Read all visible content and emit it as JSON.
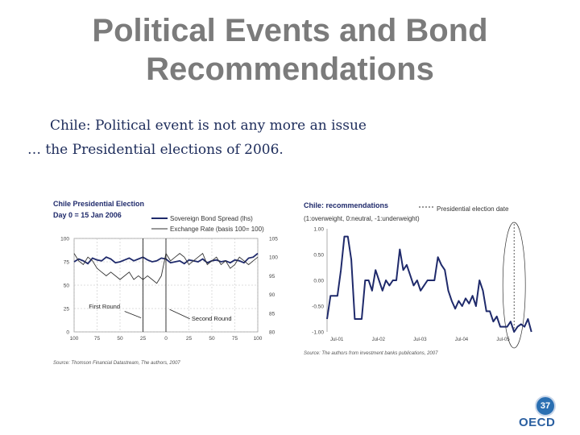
{
  "slide": {
    "title_line1": "Political Events and Bond",
    "title_line2": "Recommendations",
    "subtitle_line1": "Chile: Political event is not any more an issue",
    "subtitle_line2": "… the Presidential elections of 2006.",
    "page_number": "37",
    "logo_text": "OECD"
  },
  "colors": {
    "title": "#7b7b7b",
    "subtitle": "#1c2b5a",
    "navy_series": "#1f2a6b",
    "grey_series": "#333333",
    "badge": "#2a6fb2"
  },
  "chart_data": [
    {
      "type": "line",
      "title": "Chile Presidential Election",
      "subtitle": "Day 0 = 15 Jan 2006",
      "x": [
        -100,
        -95,
        -90,
        -85,
        -80,
        -75,
        -70,
        -65,
        -60,
        -55,
        -50,
        -45,
        -40,
        -35,
        -30,
        -25,
        -20,
        -15,
        -10,
        -5,
        0,
        5,
        10,
        15,
        20,
        25,
        30,
        35,
        40,
        45,
        50,
        55,
        60,
        65,
        70,
        75,
        80,
        85,
        90,
        95,
        100
      ],
      "x_ticks": [
        "100",
        "75",
        "50",
        "25",
        "0",
        "25",
        "50",
        "75",
        "100"
      ],
      "x_tick_values": [
        -100,
        -75,
        -50,
        -25,
        0,
        25,
        50,
        75,
        100
      ],
      "xlim": [
        -100,
        100
      ],
      "left_ylim": [
        0,
        100
      ],
      "left_ticks": [
        "100",
        "75",
        "50",
        "25",
        "0"
      ],
      "left_tick_values": [
        100,
        75,
        50,
        25,
        0
      ],
      "right_ylim": [
        80,
        105
      ],
      "right_ticks": [
        "105",
        "100",
        "95",
        "90",
        "85",
        "80"
      ],
      "right_tick_values": [
        105,
        100,
        95,
        90,
        85,
        80
      ],
      "series": [
        {
          "name": "Sovereign Bond Spread (lhs)",
          "axis": "left",
          "color": "#1f2a6b",
          "values": [
            75,
            78,
            76,
            73,
            79,
            77,
            76,
            80,
            78,
            74,
            75,
            77,
            79,
            76,
            78,
            80,
            77,
            75,
            76,
            79,
            78,
            74,
            75,
            76,
            73,
            77,
            76,
            75,
            78,
            74,
            76,
            77,
            75,
            76,
            74,
            77,
            76,
            74,
            79,
            80,
            84
          ]
        },
        {
          "name": "Exchange Rate (basis 100= 100)",
          "axis": "right",
          "color": "#333333",
          "values": [
            101,
            99,
            98,
            100,
            99,
            97,
            96,
            95,
            96,
            95,
            94,
            95,
            96,
            94,
            95,
            94,
            95,
            94,
            93,
            95,
            101,
            99,
            100,
            101,
            100,
            98,
            99,
            100,
            101,
            98,
            99,
            100,
            98,
            99,
            97,
            98,
            100,
            99,
            98,
            99,
            100
          ]
        }
      ],
      "annotations": [
        "First Round",
        "Second Round"
      ],
      "annotation_x": [
        -25,
        0
      ],
      "source": "Source: Thomson Financial Datastream, The authors, 2007"
    },
    {
      "type": "line",
      "title": "Chile: recommendations",
      "subtitle": "(1:overweight, 0:neutral, -1:underweight)",
      "legend": "Presidential election date",
      "x_ticks": [
        "Jul-01",
        "Jul-02",
        "Jul-03",
        "Jul-04",
        "Jul-05"
      ],
      "x_tick_values": [
        0,
        12,
        24,
        36,
        48
      ],
      "xlim": [
        0,
        60
      ],
      "ylim": [
        -1,
        1
      ],
      "y_ticks": [
        "1.00",
        "0.50",
        "0.00",
        "-0.50",
        "-1.00"
      ],
      "y_tick_values": [
        1,
        0.5,
        0,
        -0.5,
        -1
      ],
      "election_x": 54,
      "series": [
        {
          "name": "",
          "color": "#1f2a6b",
          "values": [
            -0.75,
            -0.3,
            -0.3,
            -0.3,
            0.2,
            0.85,
            0.85,
            0.4,
            -0.75,
            -0.75,
            -0.75,
            0.0,
            0.0,
            -0.2,
            0.2,
            0.0,
            -0.2,
            0.0,
            -0.1,
            0.0,
            0.0,
            0.6,
            0.2,
            0.3,
            0.1,
            -0.1,
            0.0,
            -0.2,
            -0.1,
            0.0,
            0.0,
            0.0,
            0.45,
            0.3,
            0.2,
            -0.2,
            -0.4,
            -0.55,
            -0.4,
            -0.5,
            -0.35,
            -0.45,
            -0.3,
            -0.5,
            0.0,
            -0.2,
            -0.6,
            -0.6,
            -0.8,
            -0.7,
            -0.9,
            -0.9,
            -0.9,
            -0.8,
            -1.0,
            -0.9,
            -0.85,
            -0.9,
            -0.75,
            -1.0
          ]
        }
      ],
      "source": "Source: The authors from investment banks publications, 2007"
    }
  ]
}
